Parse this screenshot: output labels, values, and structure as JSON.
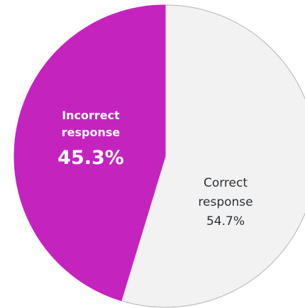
{
  "chart_data": {
    "type": "pie",
    "title": "",
    "start_angle_deg": 0,
    "direction": "clockwise",
    "slices": [
      {
        "name": "Correct response",
        "label_lines": [
          "Correct",
          "response"
        ],
        "value": 54.7,
        "value_label": "54.7%",
        "color": "#f2f2f2",
        "stroke": "#b3b3b3",
        "label_color": "#2b3137"
      },
      {
        "name": "Incorrect response",
        "label_lines": [
          "Incorrect",
          "response"
        ],
        "value": 45.3,
        "value_label": "45.3%",
        "color": "#c424bd",
        "stroke": "#c424bd",
        "label_color": "#ffffff"
      }
    ]
  }
}
